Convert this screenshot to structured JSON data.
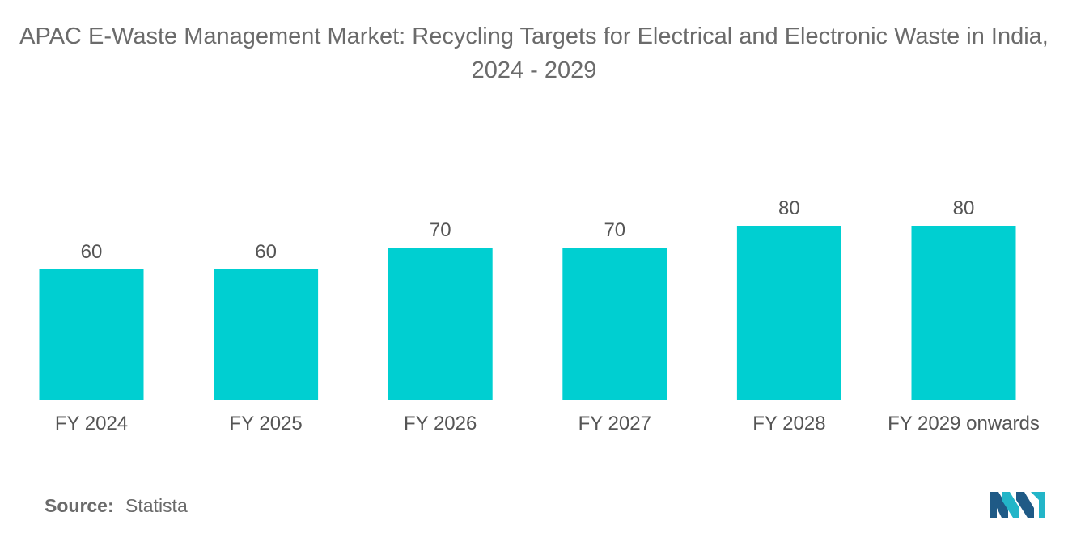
{
  "chart_data": {
    "type": "bar",
    "title": "APAC E-Waste Management Market: Recycling Targets for Electrical and Electronic Waste in India, 2024 - 2029",
    "categories": [
      "FY 2024",
      "FY 2025",
      "FY 2026",
      "FY 2027",
      "FY 2028",
      "FY 2029 onwards"
    ],
    "values": [
      60,
      60,
      70,
      70,
      80,
      80
    ],
    "data_labels": [
      "60",
      "60",
      "70",
      "70",
      "80",
      "80"
    ],
    "xlabel": "",
    "ylabel": "",
    "ylim": [
      0,
      100
    ],
    "grid": false,
    "bar_color": "#00cfd1"
  },
  "source": {
    "label": "Source:",
    "value": "Statista"
  },
  "colors": {
    "title": "#6b6b6b",
    "text": "#555555",
    "logo_dark": "#1f5a86",
    "logo_light": "#23b5c8"
  }
}
